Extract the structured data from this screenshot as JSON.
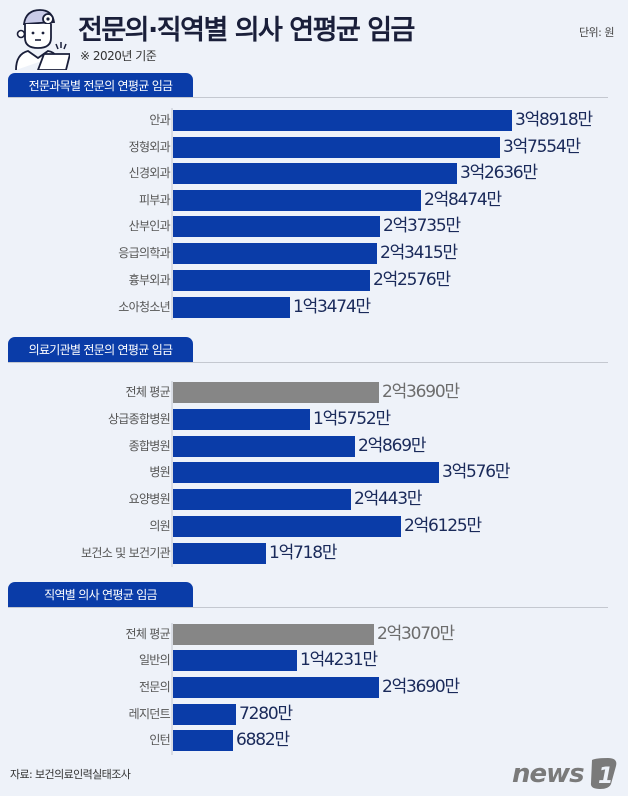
{
  "header": {
    "title": "전문의·직역별 의사 연평균 임금",
    "subtitle": "※ 2020년 기준",
    "unit": "단위: 원"
  },
  "sections": [
    {
      "title": "전문과목별 전문의 연평균 임금",
      "rows": [
        {
          "label": "안과",
          "value": "3억8918만",
          "amount": 38918,
          "avg": false
        },
        {
          "label": "정형외과",
          "value": "3억7554만",
          "amount": 37554,
          "avg": false
        },
        {
          "label": "신경외과",
          "value": "3억2636만",
          "amount": 32636,
          "avg": false
        },
        {
          "label": "피부과",
          "value": "2억8474만",
          "amount": 28474,
          "avg": false
        },
        {
          "label": "산부인과",
          "value": "2억3735만",
          "amount": 23735,
          "avg": false
        },
        {
          "label": "응급의학과",
          "value": "2억3415만",
          "amount": 23415,
          "avg": false
        },
        {
          "label": "흉부외과",
          "value": "2억2576만",
          "amount": 22576,
          "avg": false
        },
        {
          "label": "소아청소년",
          "value": "1억3474만",
          "amount": 13474,
          "avg": false
        }
      ]
    },
    {
      "title": "의료기관별 전문의 연평균 임금",
      "rows": [
        {
          "label": "전체 평균",
          "value": "2억3690만",
          "amount": 23690,
          "avg": true
        },
        {
          "label": "상급종합병원",
          "value": "1억5752만",
          "amount": 15752,
          "avg": false
        },
        {
          "label": "종합병원",
          "value": "2억869만",
          "amount": 20869,
          "avg": false
        },
        {
          "label": "병원",
          "value": "3억576만",
          "amount": 30576,
          "avg": false
        },
        {
          "label": "요양병원",
          "value": "2억443만",
          "amount": 20443,
          "avg": false
        },
        {
          "label": "의원",
          "value": "2억6125만",
          "amount": 26125,
          "avg": false
        },
        {
          "label": "보건소 및 보건기관",
          "value": "1억718만",
          "amount": 10718,
          "avg": false
        }
      ]
    },
    {
      "title": "직역별 의사 연평균 임금",
      "rows": [
        {
          "label": "전체 평균",
          "value": "2억3070만",
          "amount": 23070,
          "avg": true
        },
        {
          "label": "일반의",
          "value": "1억4231만",
          "amount": 14231,
          "avg": false
        },
        {
          "label": "전문의",
          "value": "2억3690만",
          "amount": 23690,
          "avg": false
        },
        {
          "label": "레지던트",
          "value": "7280만",
          "amount": 7280,
          "avg": false
        },
        {
          "label": "인턴",
          "value": "6882만",
          "amount": 6882,
          "avg": false
        }
      ]
    }
  ],
  "footer": {
    "source": "자료: 보건의료인력실태조사",
    "logo_text": "news",
    "logo_mark": "1"
  },
  "colors": {
    "bar": "#0a3ca8",
    "avg_bar": "#868686",
    "background": "#eef2f9"
  },
  "chart_data": [
    {
      "type": "bar",
      "orientation": "horizontal",
      "title": "전문과목별 전문의 연평균 임금",
      "unit": "원",
      "categories": [
        "안과",
        "정형외과",
        "신경외과",
        "피부과",
        "산부인과",
        "응급의학과",
        "흉부외과",
        "소아청소년"
      ],
      "values": [
        389180000,
        375540000,
        326360000,
        284740000,
        237350000,
        234150000,
        225760000,
        134740000
      ],
      "labels": [
        "3억8918만",
        "3억7554만",
        "3억2636만",
        "2억8474만",
        "2억3735만",
        "2억3415만",
        "2억2576만",
        "1억3474만"
      ],
      "grid": false,
      "legend": null
    },
    {
      "type": "bar",
      "orientation": "horizontal",
      "title": "의료기관별 전문의 연평균 임금",
      "unit": "원",
      "categories": [
        "전체 평균",
        "상급종합병원",
        "종합병원",
        "병원",
        "요양병원",
        "의원",
        "보건소 및 보건기관"
      ],
      "values": [
        236900000,
        157520000,
        208690000,
        305760000,
        204430000,
        261250000,
        107180000
      ],
      "labels": [
        "2억3690만",
        "1억5752만",
        "2억869만",
        "3억576만",
        "2억443만",
        "2억6125만",
        "1억718만"
      ],
      "highlight": {
        "전체 평균": "gray"
      },
      "grid": false,
      "legend": null
    },
    {
      "type": "bar",
      "orientation": "horizontal",
      "title": "직역별 의사 연평균 임금",
      "unit": "원",
      "categories": [
        "전체 평균",
        "일반의",
        "전문의",
        "레지던트",
        "인턴"
      ],
      "values": [
        230700000,
        142310000,
        236900000,
        72800000,
        68820000
      ],
      "labels": [
        "2억3070만",
        "1억4231만",
        "2억3690만",
        "7280만",
        "6882만"
      ],
      "highlight": {
        "전체 평균": "gray"
      },
      "grid": false,
      "legend": null
    }
  ]
}
